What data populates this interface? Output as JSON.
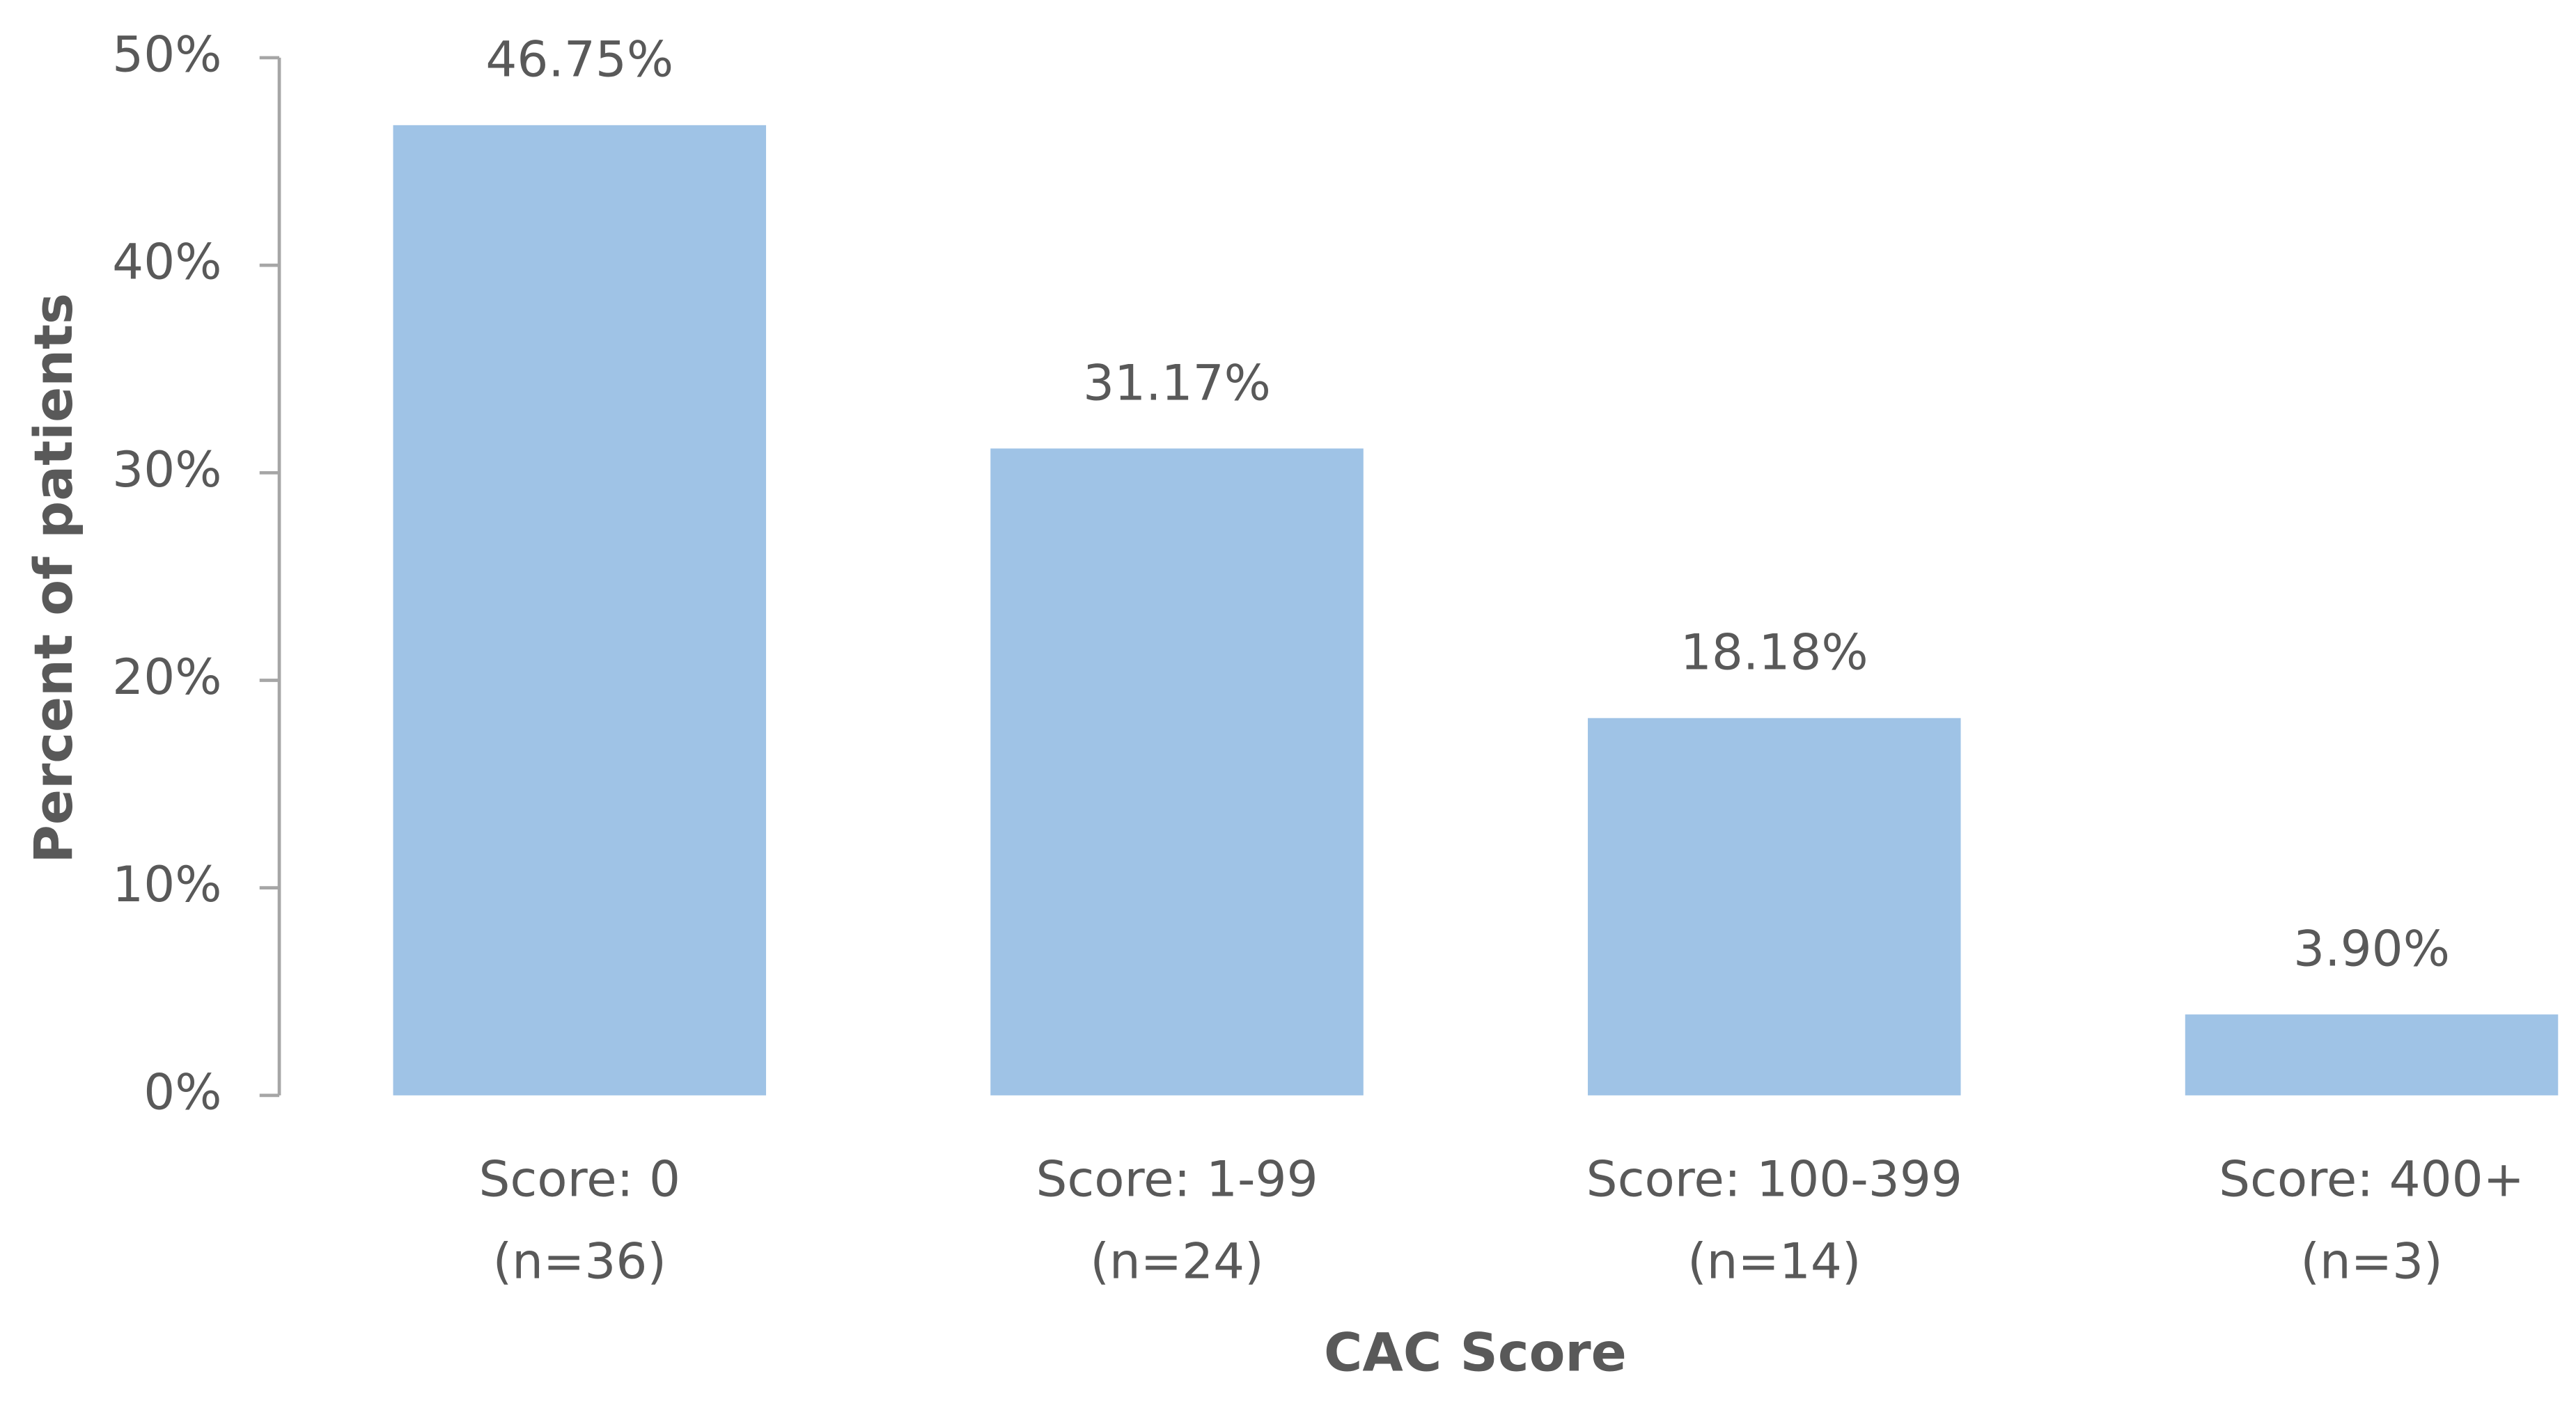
{
  "chart_data": {
    "type": "bar",
    "x_label": "CAC Score",
    "y_label": "Percent of patients",
    "categories": [
      [
        "Score: 0",
        "(n=36)"
      ],
      [
        "Score: 1-99",
        "(n=24)"
      ],
      [
        "Score: 100-399",
        "(n=14)"
      ],
      [
        "Score: 400+",
        "(n=3)"
      ]
    ],
    "values": [
      46.75,
      31.17,
      18.18,
      3.9
    ],
    "value_labels": [
      "46.75%",
      "31.17%",
      "18.18%",
      "3.90%"
    ],
    "color": "#9fc3e6",
    "ylim": [
      0,
      50
    ],
    "yticks": [
      {
        "value": 0,
        "label": "0%"
      },
      {
        "value": 10,
        "label": "10%"
      },
      {
        "value": 20,
        "label": "20%"
      },
      {
        "value": 30,
        "label": "30%"
      },
      {
        "value": 40,
        "label": "40%"
      },
      {
        "value": 50,
        "label": "50%"
      }
    ],
    "grid": false
  }
}
